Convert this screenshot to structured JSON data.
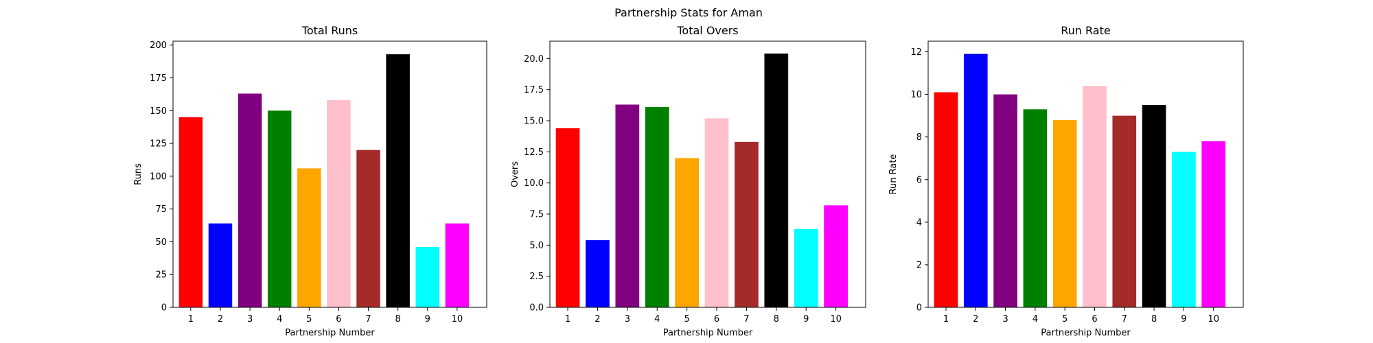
{
  "figure": {
    "suptitle": "Partnership Stats for Aman"
  },
  "chart_data": [
    {
      "type": "bar",
      "title": "Total Runs",
      "xlabel": "Partnership Number",
      "ylabel": "Runs",
      "categories": [
        "1",
        "2",
        "3",
        "4",
        "5",
        "6",
        "7",
        "8",
        "9",
        "10"
      ],
      "values": [
        145,
        64,
        163,
        150,
        106,
        158,
        120,
        193,
        46,
        64
      ],
      "ylim": [
        0,
        203
      ],
      "yticks": [
        0,
        25,
        50,
        75,
        100,
        125,
        150,
        175,
        200
      ],
      "ytick_labels": [
        "0",
        "25",
        "50",
        "75",
        "100",
        "125",
        "150",
        "175",
        "200"
      ],
      "colors": [
        "#ff0000",
        "#0000ff",
        "#800080",
        "#008000",
        "#ffa500",
        "#ffc0cb",
        "#a52a2a",
        "#000000",
        "#00ffff",
        "#ff00ff"
      ],
      "grid": false
    },
    {
      "type": "bar",
      "title": "Total Overs",
      "xlabel": "Partnership Number",
      "ylabel": "Overs",
      "categories": [
        "1",
        "2",
        "3",
        "4",
        "5",
        "6",
        "7",
        "8",
        "9",
        "10"
      ],
      "values": [
        14.4,
        5.4,
        16.3,
        16.1,
        12.0,
        15.2,
        13.3,
        20.4,
        6.3,
        8.2
      ],
      "ylim": [
        0,
        21.4
      ],
      "yticks": [
        0,
        2.5,
        5,
        7.5,
        10,
        12.5,
        15,
        17.5,
        20
      ],
      "ytick_labels": [
        "0.0",
        "2.5",
        "5.0",
        "7.5",
        "10.0",
        "12.5",
        "15.0",
        "17.5",
        "20.0"
      ],
      "colors": [
        "#ff0000",
        "#0000ff",
        "#800080",
        "#008000",
        "#ffa500",
        "#ffc0cb",
        "#a52a2a",
        "#000000",
        "#00ffff",
        "#ff00ff"
      ],
      "grid": false
    },
    {
      "type": "bar",
      "title": "Run Rate",
      "xlabel": "Partnership Number",
      "ylabel": "Run Rate",
      "categories": [
        "1",
        "2",
        "3",
        "4",
        "5",
        "6",
        "7",
        "8",
        "9",
        "10"
      ],
      "values": [
        10.1,
        11.9,
        10.0,
        9.3,
        8.8,
        10.4,
        9.0,
        9.5,
        7.3,
        7.8
      ],
      "ylim": [
        0,
        12.5
      ],
      "yticks": [
        0,
        2,
        4,
        6,
        8,
        10,
        12
      ],
      "ytick_labels": [
        "0",
        "2",
        "4",
        "6",
        "8",
        "10",
        "12"
      ],
      "colors": [
        "#ff0000",
        "#0000ff",
        "#800080",
        "#008000",
        "#ffa500",
        "#ffc0cb",
        "#a52a2a",
        "#000000",
        "#00ffff",
        "#ff00ff"
      ],
      "grid": false
    }
  ]
}
